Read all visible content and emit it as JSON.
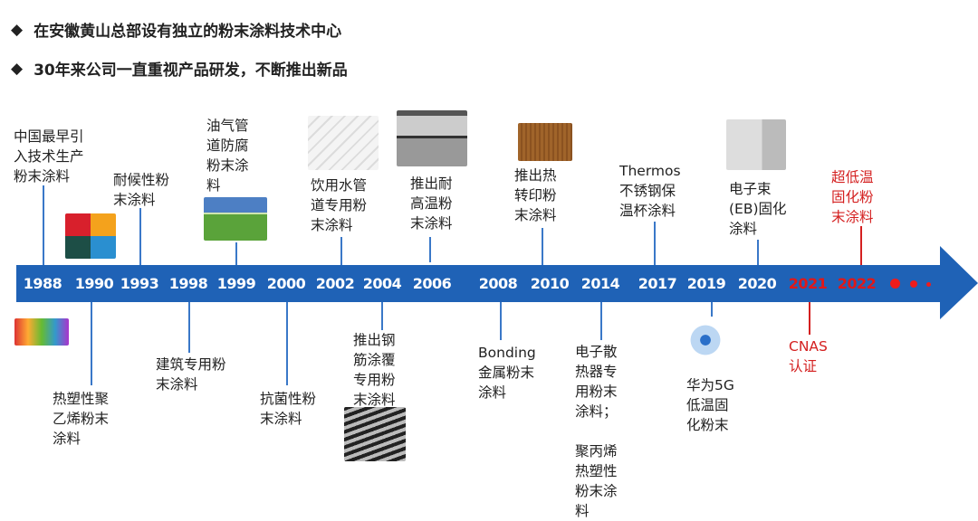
{
  "bullets": [
    "在安徽黄山总部设有独立的粉末涂料技术中心",
    "30年来公司一直重视产品研发，不断推出新品"
  ],
  "bullet_icon": "diamond-icon",
  "colors": {
    "arrow": "#1f62b6",
    "highlight": "#d42020"
  },
  "years": [
    "1988",
    "1990",
    "1993",
    "1998",
    "1999",
    "2000",
    "2002",
    "2004",
    "2006",
    "2008",
    "2010",
    "2014",
    "2017",
    "2019",
    "2020",
    "2021",
    "2022"
  ],
  "events": {
    "e1988": "中国最早引\n入技术生产\n粉末涂料",
    "e1990": "热塑性聚\n乙烯粉末\n涂料",
    "e1993": "耐候性粉\n末涂料",
    "e1998": "建筑专用粉\n末涂料",
    "e1999": "油气管\n道防腐\n粉末涂\n料",
    "e2000": "抗菌性粉\n末涂料",
    "e2002": "饮用水管\n道专用粉\n末涂料",
    "e2004": "推出钢\n筋涂覆\n专用粉\n末涂料",
    "e2006": "推出耐\n高温粉\n末涂料",
    "e2008": "Bonding\n金属粉末\n涂料",
    "e2010": "推出热\n转印粉\n末涂料",
    "e2014": "电子散\n热器专\n用粉末\n涂料；\n\n聚丙烯\n热塑性\n粉末涂\n料",
    "e2017": "Thermos\n不锈钢保\n温杯涂料",
    "e2019": "华为5G\n低温固\n化粉末",
    "e2020": "电子束\n(EB)固化\n涂料",
    "e2021": "CNAS\n认证",
    "e2022": "超低温\n固化粉\n末涂料"
  }
}
